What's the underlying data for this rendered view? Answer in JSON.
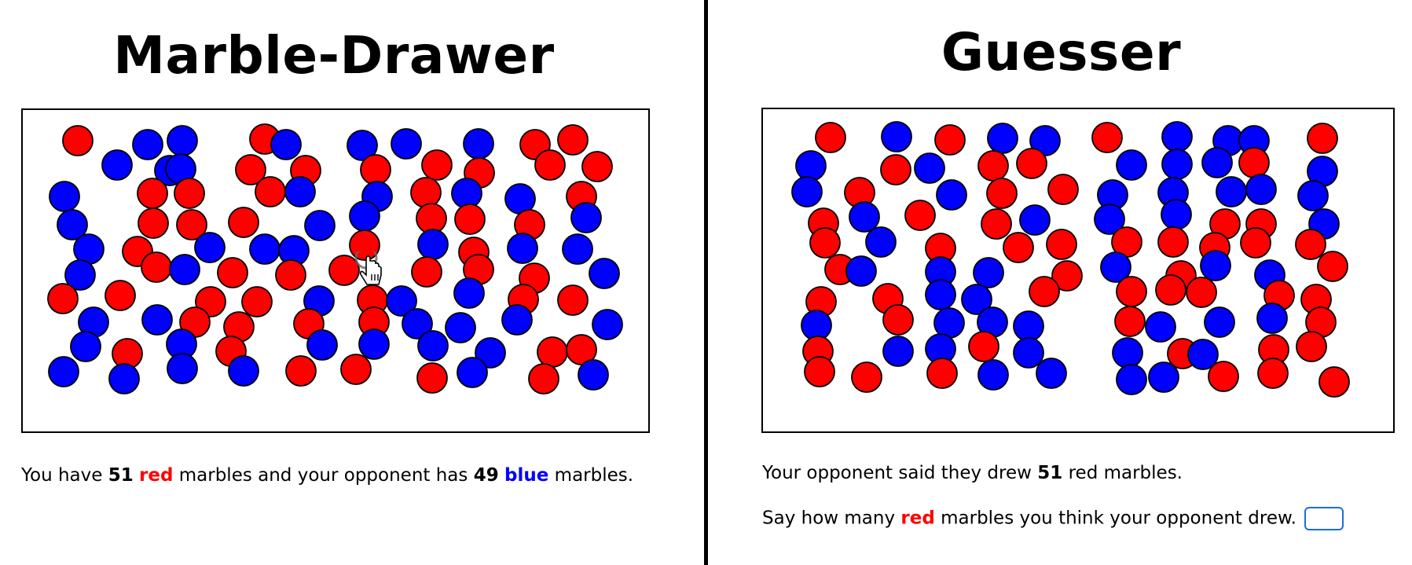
{
  "drawer": {
    "title": "Marble-Drawer",
    "status": {
      "prefix": "You have ",
      "own_count": "51",
      "own_color": "red",
      "middle": " marbles and your opponent has ",
      "opp_count": "49",
      "opp_color": "blue",
      "suffix": " marbles."
    }
  },
  "guesser": {
    "title": "Guesser",
    "report": {
      "prefix": "Your opponent said they drew ",
      "count": "51",
      "suffix": " red marbles."
    },
    "prompt": {
      "prefix": "Say how many ",
      "color_word": "red",
      "suffix": " marbles you think your opponent drew."
    },
    "guess_value": ""
  },
  "colors": {
    "red": "#ff0000",
    "blue": "#0000ff"
  },
  "marbles_left": [
    [
      "r",
      70,
      39
    ],
    [
      "b",
      159,
      44
    ],
    [
      "b",
      203,
      39
    ],
    [
      "r",
      308,
      37
    ],
    [
      "b",
      335,
      44
    ],
    [
      "b",
      432,
      45
    ],
    [
      "b",
      488,
      43
    ],
    [
      "b",
      580,
      43
    ],
    [
      "r",
      652,
      44
    ],
    [
      "r",
      700,
      38
    ],
    [
      "b",
      120,
      70
    ],
    [
      "b",
      187,
      77
    ],
    [
      "b",
      201,
      75
    ],
    [
      "r",
      290,
      76
    ],
    [
      "r",
      360,
      77
    ],
    [
      "r",
      449,
      76
    ],
    [
      "r",
      527,
      70
    ],
    [
      "r",
      581,
      80
    ],
    [
      "r",
      671,
      70
    ],
    [
      "r",
      731,
      72
    ],
    [
      "b",
      53,
      110
    ],
    [
      "r",
      165,
      106
    ],
    [
      "r",
      212,
      106
    ],
    [
      "r",
      315,
      104
    ],
    [
      "b",
      353,
      104
    ],
    [
      "b",
      451,
      110
    ],
    [
      "r",
      513,
      105
    ],
    [
      "b",
      565,
      106
    ],
    [
      "b",
      633,
      113
    ],
    [
      "r",
      711,
      110
    ],
    [
      "b",
      63,
      146
    ],
    [
      "r",
      166,
      144
    ],
    [
      "r",
      215,
      146
    ],
    [
      "r",
      281,
      143
    ],
    [
      "b",
      378,
      147
    ],
    [
      "b",
      435,
      135
    ],
    [
      "r",
      520,
      138
    ],
    [
      "r",
      569,
      139
    ],
    [
      "r",
      645,
      146
    ],
    [
      "b",
      717,
      137
    ],
    [
      "b",
      84,
      177
    ],
    [
      "r",
      146,
      180
    ],
    [
      "b",
      238,
      175
    ],
    [
      "b",
      308,
      177
    ],
    [
      "b",
      345,
      179
    ],
    [
      "r",
      435,
      172
    ],
    [
      "b",
      522,
      171
    ],
    [
      "r",
      574,
      181
    ],
    [
      "b",
      636,
      176
    ],
    [
      "b",
      706,
      177
    ],
    [
      "b",
      73,
      210
    ],
    [
      "r",
      170,
      200
    ],
    [
      "b",
      206,
      203
    ],
    [
      "r",
      267,
      207
    ],
    [
      "r",
      341,
      210
    ],
    [
      "r",
      409,
      204
    ],
    [
      "r",
      514,
      206
    ],
    [
      "r",
      580,
      203
    ],
    [
      "r",
      651,
      214
    ],
    [
      "b",
      740,
      208
    ],
    [
      "r",
      51,
      240
    ],
    [
      "r",
      124,
      236
    ],
    [
      "r",
      239,
      244
    ],
    [
      "r",
      298,
      244
    ],
    [
      "b",
      377,
      243
    ],
    [
      "r",
      445,
      242
    ],
    [
      "b",
      482,
      243
    ],
    [
      "b",
      568,
      233
    ],
    [
      "r",
      637,
      241
    ],
    [
      "r",
      700,
      242
    ],
    [
      "b",
      90,
      270
    ],
    [
      "b",
      171,
      267
    ],
    [
      "r",
      219,
      270
    ],
    [
      "r",
      275,
      276
    ],
    [
      "r",
      364,
      272
    ],
    [
      "r",
      447,
      270
    ],
    [
      "b",
      502,
      272
    ],
    [
      "b",
      557,
      277
    ],
    [
      "b",
      629,
      267
    ],
    [
      "b",
      744,
      273
    ],
    [
      "b",
      80,
      301
    ],
    [
      "r",
      133,
      310
    ],
    [
      "b",
      202,
      298
    ],
    [
      "r",
      265,
      307
    ],
    [
      "b",
      381,
      299
    ],
    [
      "b",
      447,
      298
    ],
    [
      "b",
      522,
      300
    ],
    [
      "b",
      595,
      309
    ],
    [
      "r",
      674,
      308
    ],
    [
      "r",
      711,
      305
    ],
    [
      "b",
      52,
      333
    ],
    [
      "b",
      129,
      342
    ],
    [
      "b",
      203,
      329
    ],
    [
      "b",
      281,
      332
    ],
    [
      "r",
      354,
      332
    ],
    [
      "r",
      424,
      330
    ],
    [
      "r",
      521,
      341
    ],
    [
      "b",
      572,
      334
    ],
    [
      "r",
      663,
      342
    ],
    [
      "b",
      726,
      337
    ]
  ],
  "marbles_right": [
    [
      "r",
      86,
      36
    ],
    [
      "b",
      170,
      35
    ],
    [
      "r",
      238,
      39
    ],
    [
      "b",
      305,
      37
    ],
    [
      "b",
      359,
      40
    ],
    [
      "r",
      438,
      36
    ],
    [
      "b",
      527,
      35
    ],
    [
      "b",
      592,
      40
    ],
    [
      "b",
      625,
      40
    ],
    [
      "r",
      712,
      37
    ],
    [
      "b",
      61,
      72
    ],
    [
      "r",
      169,
      77
    ],
    [
      "b",
      212,
      75
    ],
    [
      "r",
      293,
      72
    ],
    [
      "r",
      342,
      69
    ],
    [
      "b",
      469,
      71
    ],
    [
      "b",
      527,
      70
    ],
    [
      "b",
      578,
      68
    ],
    [
      "r",
      625,
      68
    ],
    [
      "b",
      712,
      79
    ],
    [
      "b",
      56,
      105
    ],
    [
      "r",
      123,
      106
    ],
    [
      "b",
      240,
      109
    ],
    [
      "r",
      304,
      107
    ],
    [
      "r",
      382,
      102
    ],
    [
      "b",
      445,
      109
    ],
    [
      "b",
      522,
      106
    ],
    [
      "b",
      596,
      105
    ],
    [
      "b",
      634,
      102
    ],
    [
      "b",
      700,
      110
    ],
    [
      "r",
      77,
      145
    ],
    [
      "b",
      129,
      137
    ],
    [
      "r",
      200,
      135
    ],
    [
      "r",
      297,
      146
    ],
    [
      "b",
      346,
      141
    ],
    [
      "b",
      441,
      140
    ],
    [
      "b",
      526,
      134
    ],
    [
      "r",
      588,
      146
    ],
    [
      "r",
      634,
      146
    ],
    [
      "b",
      714,
      146
    ],
    [
      "r",
      79,
      170
    ],
    [
      "b",
      150,
      169
    ],
    [
      "r",
      226,
      177
    ],
    [
      "r",
      325,
      176
    ],
    [
      "r",
      380,
      172
    ],
    [
      "r",
      463,
      169
    ],
    [
      "r",
      522,
      169
    ],
    [
      "r",
      575,
      176
    ],
    [
      "r",
      627,
      170
    ],
    [
      "r",
      697,
      172
    ],
    [
      "r",
      98,
      204
    ],
    [
      "b",
      125,
      206
    ],
    [
      "b",
      226,
      207
    ],
    [
      "b",
      287,
      208
    ],
    [
      "r",
      387,
      212
    ],
    [
      "b",
      449,
      201
    ],
    [
      "r",
      532,
      212
    ],
    [
      "b",
      576,
      199
    ],
    [
      "b",
      645,
      211
    ],
    [
      "r",
      725,
      200
    ],
    [
      "r",
      74,
      245
    ],
    [
      "r",
      159,
      241
    ],
    [
      "b",
      226,
      236
    ],
    [
      "b",
      272,
      242
    ],
    [
      "r",
      358,
      232
    ],
    [
      "r",
      469,
      232
    ],
    [
      "r",
      519,
      230
    ],
    [
      "r",
      558,
      233
    ],
    [
      "r",
      657,
      237
    ],
    [
      "r",
      704,
      242
    ],
    [
      "b",
      68,
      275
    ],
    [
      "r",
      172,
      268
    ],
    [
      "b",
      237,
      272
    ],
    [
      "b",
      292,
      271
    ],
    [
      "b",
      338,
      276
    ],
    [
      "r",
      467,
      270
    ],
    [
      "b",
      506,
      277
    ],
    [
      "b",
      581,
      271
    ],
    [
      "b",
      648,
      266
    ],
    [
      "r",
      710,
      271
    ],
    [
      "r",
      70,
      308
    ],
    [
      "b",
      172,
      308
    ],
    [
      "b",
      226,
      305
    ],
    [
      "r",
      281,
      302
    ],
    [
      "b",
      338,
      310
    ],
    [
      "b",
      464,
      310
    ],
    [
      "r",
      534,
      311
    ],
    [
      "b",
      560,
      312
    ],
    [
      "r",
      650,
      306
    ],
    [
      "r",
      698,
      302
    ],
    [
      "r",
      72,
      334
    ],
    [
      "r",
      132,
      341
    ],
    [
      "r",
      228,
      336
    ],
    [
      "b",
      293,
      338
    ],
    [
      "b",
      367,
      336
    ],
    [
      "b",
      469,
      344
    ],
    [
      "b",
      510,
      341
    ],
    [
      "r",
      586,
      340
    ],
    [
      "r",
      649,
      336
    ],
    [
      "r",
      727,
      347
    ]
  ]
}
